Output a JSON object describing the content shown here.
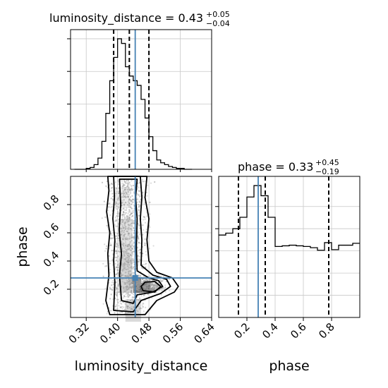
{
  "chart_data": {
    "type": "corner",
    "parameters": [
      "luminosity_distance",
      "phase"
    ],
    "truth": {
      "luminosity_distance": 0.445,
      "phase": 0.28
    },
    "colors": {
      "truth": "#4682b4",
      "hist": "#000000",
      "quantile": "#000000",
      "grid": "#c8c8c8",
      "scatter": "#9a9a9a"
    },
    "panels": [
      {
        "id": "luminosity_distance",
        "title": {
          "base": "luminosity_distance = 0.43",
          "plus": "+0.05",
          "minus": "−0.04"
        },
        "quantiles": [
          0.39,
          0.43,
          0.48
        ],
        "xlim": [
          0.28,
          0.64
        ],
        "xticks": [
          0.32,
          0.4,
          0.48,
          0.56,
          0.64
        ],
        "xticklabels": [
          "0.32",
          "0.40",
          "0.48",
          "0.56",
          "0.64"
        ],
        "xlabel": "luminosity_distance",
        "hist": {
          "edges": [
            0.29,
            0.3,
            0.31,
            0.32,
            0.33,
            0.34,
            0.35,
            0.36,
            0.37,
            0.38,
            0.39,
            0.4,
            0.41,
            0.42,
            0.43,
            0.44,
            0.45,
            0.46,
            0.47,
            0.48,
            0.49,
            0.5,
            0.51,
            0.52,
            0.53,
            0.54,
            0.55,
            0.56,
            0.57,
            0.58,
            0.59
          ],
          "counts": [
            0,
            0,
            0,
            1,
            2,
            5,
            12,
            30,
            60,
            95,
            120,
            140,
            135,
            110,
            100,
            95,
            90,
            75,
            55,
            35,
            20,
            10,
            7,
            5,
            3,
            2,
            1,
            1,
            0,
            0
          ]
        }
      },
      {
        "id": "phase",
        "title": {
          "base": "phase = 0.33",
          "plus": "+0.45",
          "minus": "−0.19"
        },
        "quantiles": [
          0.14,
          0.33,
          0.78
        ],
        "xlim": [
          0.0,
          1.0
        ],
        "xticks": [
          0.2,
          0.4,
          0.6,
          0.8
        ],
        "xticklabels": [
          "0.2",
          "0.4",
          "0.6",
          "0.8"
        ],
        "xlabel": "phase",
        "hist": {
          "edges": [
            0.0,
            0.05,
            0.1,
            0.15,
            0.2,
            0.25,
            0.3,
            0.35,
            0.4,
            0.45,
            0.5,
            0.55,
            0.6,
            0.65,
            0.7,
            0.75,
            0.8,
            0.85,
            0.9,
            0.95,
            1.0
          ],
          "counts": [
            130,
            133,
            140,
            158,
            190,
            208,
            192,
            158,
            112,
            113,
            114,
            113,
            112,
            110,
            106,
            118,
            107,
            114,
            114,
            117
          ]
        }
      }
    ],
    "joint": {
      "ylabel": "phase",
      "ylim": [
        0.0,
        1.0
      ],
      "yticks": [
        0.2,
        0.4,
        0.6,
        0.8
      ],
      "yticklabels": [
        "0.2",
        "0.4",
        "0.6",
        "0.8"
      ],
      "density_cells": [
        {
          "x": 0.47,
          "y": 0.22,
          "w": 0.025,
          "h": 0.05,
          "shade": "#000000"
        },
        {
          "x": 0.455,
          "y": 0.21,
          "w": 0.03,
          "h": 0.07,
          "shade": "#444444"
        },
        {
          "x": 0.445,
          "y": 0.26,
          "w": 0.03,
          "h": 0.05,
          "shade": "#666666"
        },
        {
          "x": 0.42,
          "y": 0.55,
          "w": 0.035,
          "h": 0.3,
          "shade": "#dddddd"
        },
        {
          "x": 0.42,
          "y": 0.3,
          "w": 0.035,
          "h": 0.25,
          "shade": "#cccccc"
        },
        {
          "x": 0.41,
          "y": 0.85,
          "w": 0.04,
          "h": 0.15,
          "shade": "#e6e6e6"
        },
        {
          "x": 0.48,
          "y": 0.19,
          "w": 0.03,
          "h": 0.03,
          "shade": "#777777"
        },
        {
          "x": 0.44,
          "y": 0.05,
          "w": 0.04,
          "h": 0.16,
          "shade": "#d4d4d4"
        }
      ]
    }
  }
}
